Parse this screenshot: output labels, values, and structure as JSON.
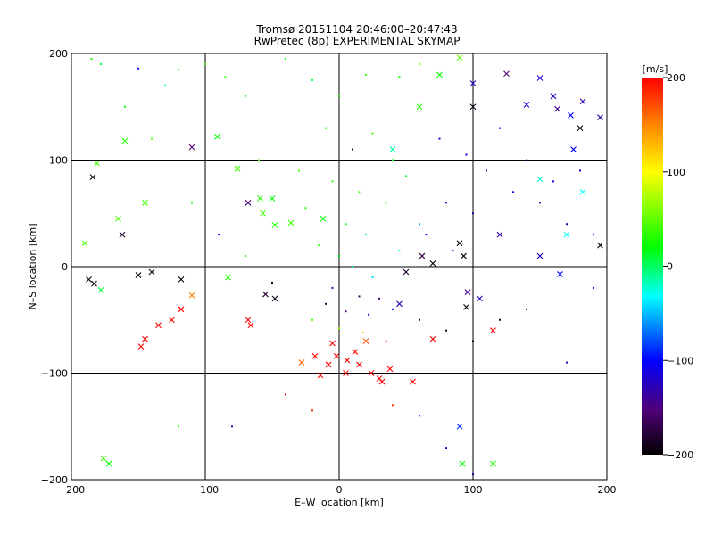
{
  "chart_data": {
    "type": "scatter",
    "title": "Tromsø 20151104 20:46:00–20:47:43",
    "subtitle": "RwPretec (8p) EXPERIMENTAL SKYMAP",
    "xlabel": "E–W location [km]",
    "ylabel": "N–S location [km]",
    "xlim": [
      -200,
      200
    ],
    "ylim": [
      -200,
      200
    ],
    "x_ticks": [
      -200,
      -100,
      0,
      100,
      200
    ],
    "y_ticks": [
      -200,
      -100,
      0,
      100,
      200
    ],
    "grid": true,
    "colorbar": {
      "label": "[m/s]",
      "range": [
        -200,
        200
      ],
      "ticks": [
        -200,
        -100,
        0,
        100,
        200
      ],
      "colormap": "rainbow (black-purple-blue-cyan-green-yellow-red)"
    },
    "series": [
      {
        "marker": "x",
        "points": [
          [
            -181,
            97,
            40
          ],
          [
            -184,
            84,
            -190
          ],
          [
            -160,
            118,
            30
          ],
          [
            -145,
            60,
            40
          ],
          [
            -165,
            45,
            40
          ],
          [
            -162,
            30,
            -180
          ],
          [
            -190,
            22,
            40
          ],
          [
            -178,
            -22,
            10
          ],
          [
            -187,
            -12,
            -200
          ],
          [
            -183,
            -16,
            -200
          ],
          [
            -150,
            -8,
            -200
          ],
          [
            -140,
            -5,
            -200
          ],
          [
            -118,
            -12,
            -200
          ],
          [
            -110,
            -27,
            150
          ],
          [
            -118,
            -40,
            200
          ],
          [
            -125,
            -50,
            200
          ],
          [
            -135,
            -55,
            200
          ],
          [
            -148,
            -75,
            200
          ],
          [
            -145,
            -68,
            200
          ],
          [
            -110,
            112,
            -150
          ],
          [
            -91,
            122,
            20
          ],
          [
            -76,
            92,
            40
          ],
          [
            -68,
            60,
            -150
          ],
          [
            -59,
            64,
            30
          ],
          [
            -57,
            50,
            40
          ],
          [
            -55,
            -26,
            -180
          ],
          [
            -48,
            -30,
            -190
          ],
          [
            -66,
            -55,
            200
          ],
          [
            -68,
            -50,
            200
          ],
          [
            -83,
            -10,
            30
          ],
          [
            -50,
            64,
            20
          ],
          [
            -48,
            39,
            30
          ],
          [
            -36,
            41,
            40
          ],
          [
            -12,
            45,
            20
          ],
          [
            40,
            110,
            -10
          ],
          [
            60,
            150,
            30
          ],
          [
            75,
            180,
            20
          ],
          [
            90,
            196,
            50
          ],
          [
            100,
            172,
            -120
          ],
          [
            100,
            150,
            -190
          ],
          [
            125,
            181,
            -150
          ],
          [
            140,
            152,
            -110
          ],
          [
            150,
            177,
            -120
          ],
          [
            160,
            160,
            -120
          ],
          [
            163,
            148,
            -140
          ],
          [
            173,
            142,
            -100
          ],
          [
            180,
            130,
            -200
          ],
          [
            182,
            155,
            -130
          ],
          [
            195,
            140,
            -130
          ],
          [
            175,
            110,
            -100
          ],
          [
            150,
            82,
            -20
          ],
          [
            120,
            30,
            -130
          ],
          [
            90,
            22,
            -200
          ],
          [
            93,
            10,
            -200
          ],
          [
            70,
            3,
            -200
          ],
          [
            62,
            10,
            -170
          ],
          [
            50,
            -5,
            -180
          ],
          [
            45,
            -35,
            -130
          ],
          [
            96,
            -24,
            -140
          ],
          [
            105,
            -30,
            -120
          ],
          [
            95,
            -38,
            -200
          ],
          [
            165,
            -7,
            -100
          ],
          [
            170,
            30,
            -30
          ],
          [
            195,
            20,
            -200
          ],
          [
            150,
            10,
            -120
          ],
          [
            182,
            70,
            -30
          ],
          [
            -2,
            -84,
            200
          ],
          [
            6,
            -88,
            200
          ],
          [
            15,
            -92,
            200
          ],
          [
            24,
            -100,
            200
          ],
          [
            12,
            -80,
            200
          ],
          [
            -5,
            -72,
            200
          ],
          [
            20,
            -70,
            170
          ],
          [
            30,
            -105,
            200
          ],
          [
            32,
            -108,
            200
          ],
          [
            -8,
            -92,
            200
          ],
          [
            38,
            -96,
            200
          ],
          [
            -14,
            -102,
            200
          ],
          [
            55,
            -108,
            200
          ],
          [
            70,
            -68,
            200
          ],
          [
            115,
            -60,
            200
          ],
          [
            90,
            -150,
            -90
          ],
          [
            92,
            -185,
            20
          ],
          [
            115,
            -185,
            30
          ],
          [
            -176,
            -180,
            40
          ],
          [
            -172,
            -185,
            20
          ],
          [
            -28,
            -90,
            160
          ],
          [
            -18,
            -84,
            200
          ],
          [
            5,
            -100,
            200
          ]
        ]
      },
      {
        "marker": "dot",
        "points": [
          [
            -185,
            195,
            30
          ],
          [
            -178,
            190,
            10
          ],
          [
            -150,
            186,
            -100
          ],
          [
            -120,
            185,
            20
          ],
          [
            -100,
            190,
            40
          ],
          [
            -130,
            170,
            -10
          ],
          [
            -85,
            178,
            40
          ],
          [
            -70,
            160,
            20
          ],
          [
            -40,
            195,
            20
          ],
          [
            -20,
            175,
            10
          ],
          [
            0,
            160,
            30
          ],
          [
            20,
            180,
            40
          ],
          [
            45,
            178,
            20
          ],
          [
            60,
            190,
            40
          ],
          [
            -10,
            130,
            30
          ],
          [
            10,
            110,
            -190
          ],
          [
            25,
            125,
            40
          ],
          [
            40,
            100,
            20
          ],
          [
            -30,
            90,
            40
          ],
          [
            -5,
            80,
            30
          ],
          [
            15,
            70,
            40
          ],
          [
            35,
            60,
            30
          ],
          [
            -25,
            55,
            30
          ],
          [
            5,
            40,
            10
          ],
          [
            20,
            30,
            0
          ],
          [
            -15,
            20,
            30
          ],
          [
            0,
            10,
            20
          ],
          [
            10,
            0,
            -10
          ],
          [
            25,
            -10,
            -40
          ],
          [
            -5,
            -20,
            -140
          ],
          [
            15,
            -28,
            -160
          ],
          [
            30,
            -30,
            -150
          ],
          [
            -10,
            -35,
            -170
          ],
          [
            5,
            -42,
            -150
          ],
          [
            22,
            -45,
            -120
          ],
          [
            40,
            -40,
            -100
          ],
          [
            -20,
            -50,
            40
          ],
          [
            0,
            -58,
            60
          ],
          [
            18,
            -62,
            120
          ],
          [
            35,
            -70,
            180
          ],
          [
            60,
            -50,
            -180
          ],
          [
            80,
            -60,
            -190
          ],
          [
            100,
            -70,
            -200
          ],
          [
            120,
            -50,
            -180
          ],
          [
            140,
            -40,
            -200
          ],
          [
            75,
            120,
            -120
          ],
          [
            95,
            105,
            -100
          ],
          [
            110,
            90,
            -130
          ],
          [
            130,
            70,
            -110
          ],
          [
            150,
            60,
            -120
          ],
          [
            170,
            40,
            -140
          ],
          [
            190,
            30,
            -100
          ],
          [
            80,
            60,
            -120
          ],
          [
            100,
            50,
            -130
          ],
          [
            120,
            130,
            -100
          ],
          [
            140,
            100,
            -130
          ],
          [
            160,
            80,
            -120
          ],
          [
            180,
            90,
            -110
          ],
          [
            65,
            30,
            -100
          ],
          [
            85,
            15,
            -80
          ],
          [
            50,
            85,
            10
          ],
          [
            60,
            40,
            -60
          ],
          [
            45,
            15,
            -20
          ],
          [
            -160,
            150,
            20
          ],
          [
            -140,
            120,
            40
          ],
          [
            -110,
            60,
            20
          ],
          [
            -90,
            30,
            -100
          ],
          [
            -70,
            10,
            30
          ],
          [
            -50,
            -15,
            -200
          ],
          [
            -60,
            100,
            40
          ],
          [
            -80,
            -150,
            -120
          ],
          [
            -40,
            -120,
            200
          ],
          [
            -20,
            -135,
            190
          ],
          [
            40,
            -130,
            180
          ],
          [
            60,
            -140,
            -100
          ],
          [
            80,
            -170,
            -110
          ],
          [
            100,
            -195,
            -110
          ],
          [
            -120,
            -150,
            30
          ],
          [
            170,
            -90,
            -130
          ],
          [
            190,
            -20,
            -100
          ]
        ]
      }
    ]
  }
}
